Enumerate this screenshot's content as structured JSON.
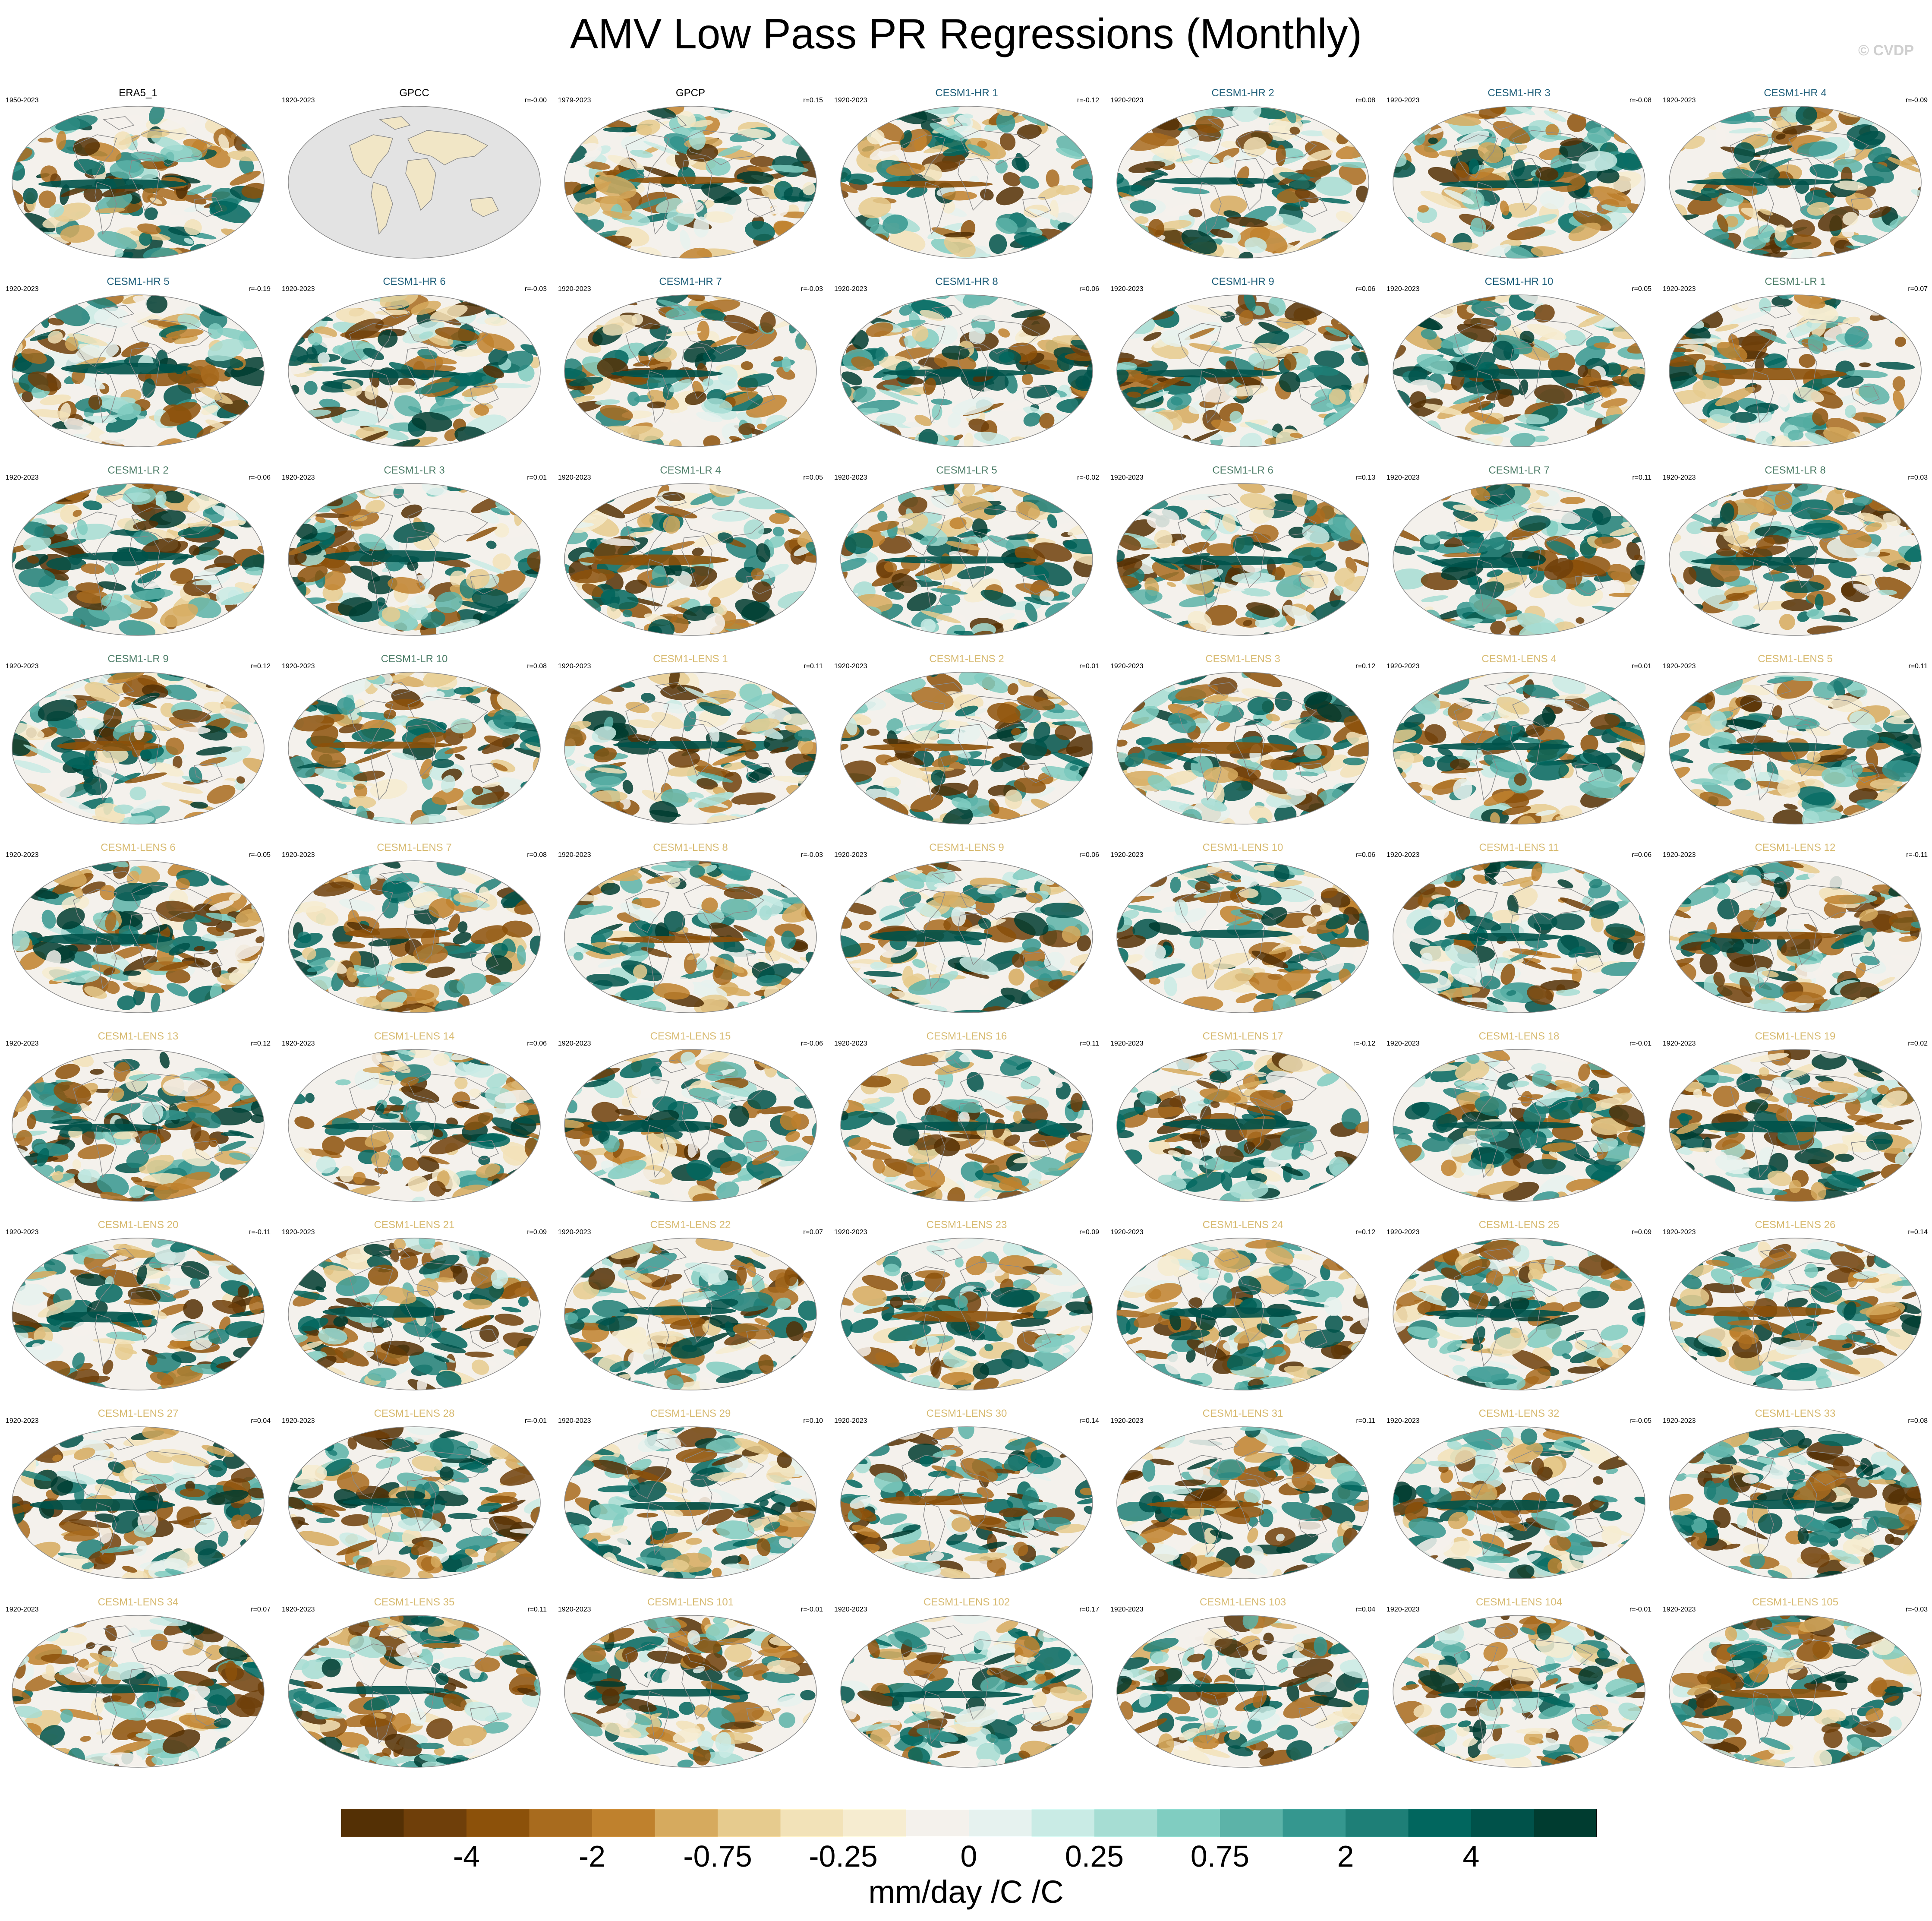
{
  "title": "AMV Low Pass PR Regressions (Monthly)",
  "watermark": "© CVDP",
  "colors": {
    "obs_title": "#000000",
    "hr_title": "#1f5f7a",
    "lr_title": "#4f7f6a",
    "lens_title": "#d8bb72",
    "land_missing": "#e3e3e3",
    "coast": "#8a8a8a"
  },
  "chart_data": {
    "type": "map_panel_grid",
    "colorbar": {
      "units": "mm/day /C /C",
      "tick_labels": [
        "-4",
        "-2",
        "-0.75",
        "-0.25",
        "0",
        "0.25",
        "0.75",
        "2",
        "4"
      ],
      "colors": [
        "#543005",
        "#6f3f0a",
        "#8c510a",
        "#a86b1e",
        "#bf812d",
        "#d6aa5e",
        "#e6cb8e",
        "#f2e2b8",
        "#f6ecd0",
        "#f4f1ec",
        "#e6f2ef",
        "#c9ebe5",
        "#a6ddd3",
        "#80cdc1",
        "#5cb3a8",
        "#35978f",
        "#1e7f77",
        "#01665e",
        "#00524a",
        "#003c30"
      ]
    },
    "panels": [
      {
        "title": "ERA5_1",
        "years": "1950-2023",
        "r": "",
        "group": "obs",
        "seed": 11
      },
      {
        "title": "GPCC",
        "years": "1920-2023",
        "r": "r=-0.00",
        "group": "obs",
        "seed": 0,
        "missing_ocean": true
      },
      {
        "title": "GPCP",
        "years": "1979-2023",
        "r": "r=0.15",
        "group": "obs",
        "seed": 23
      },
      {
        "title": "CESM1-HR 1",
        "years": "1920-2023",
        "r": "r=-0.12",
        "group": "hr",
        "seed": 31
      },
      {
        "title": "CESM1-HR 2",
        "years": "1920-2023",
        "r": "r=0.08",
        "group": "hr",
        "seed": 37
      },
      {
        "title": "CESM1-HR 3",
        "years": "1920-2023",
        "r": "r=-0.08",
        "group": "hr",
        "seed": 41
      },
      {
        "title": "CESM1-HR 4",
        "years": "1920-2023",
        "r": "r=-0.09",
        "group": "hr",
        "seed": 43
      },
      {
        "title": "CESM1-HR 5",
        "years": "1920-2023",
        "r": "r=-0.19",
        "group": "hr",
        "seed": 47
      },
      {
        "title": "CESM1-HR 6",
        "years": "1920-2023",
        "r": "r=-0.03",
        "group": "hr",
        "seed": 53
      },
      {
        "title": "CESM1-HR 7",
        "years": "1920-2023",
        "r": "r=-0.03",
        "group": "hr",
        "seed": 59
      },
      {
        "title": "CESM1-HR 8",
        "years": "1920-2023",
        "r": "r=0.06",
        "group": "hr",
        "seed": 61
      },
      {
        "title": "CESM1-HR 9",
        "years": "1920-2023",
        "r": "r=0.06",
        "group": "hr",
        "seed": 67
      },
      {
        "title": "CESM1-HR 10",
        "years": "1920-2023",
        "r": "r=0.05",
        "group": "hr",
        "seed": 71
      },
      {
        "title": "CESM1-LR 1",
        "years": "1920-2023",
        "r": "r=0.07",
        "group": "lr",
        "seed": 73
      },
      {
        "title": "CESM1-LR 2",
        "years": "1920-2023",
        "r": "r=-0.06",
        "group": "lr",
        "seed": 79
      },
      {
        "title": "CESM1-LR 3",
        "years": "1920-2023",
        "r": "r=0.01",
        "group": "lr",
        "seed": 83
      },
      {
        "title": "CESM1-LR 4",
        "years": "1920-2023",
        "r": "r=0.05",
        "group": "lr",
        "seed": 89
      },
      {
        "title": "CESM1-LR 5",
        "years": "1920-2023",
        "r": "r=-0.02",
        "group": "lr",
        "seed": 97
      },
      {
        "title": "CESM1-LR 6",
        "years": "1920-2023",
        "r": "r=0.13",
        "group": "lr",
        "seed": 101
      },
      {
        "title": "CESM1-LR 7",
        "years": "1920-2023",
        "r": "r=0.11",
        "group": "lr",
        "seed": 103
      },
      {
        "title": "CESM1-LR 8",
        "years": "1920-2023",
        "r": "r=0.03",
        "group": "lr",
        "seed": 107
      },
      {
        "title": "CESM1-LR 9",
        "years": "1920-2023",
        "r": "r=0.12",
        "group": "lr",
        "seed": 109
      },
      {
        "title": "CESM1-LR 10",
        "years": "1920-2023",
        "r": "r=0.08",
        "group": "lr",
        "seed": 113
      },
      {
        "title": "CESM1-LENS 1",
        "years": "1920-2023",
        "r": "r=0.11",
        "group": "lens",
        "seed": 127
      },
      {
        "title": "CESM1-LENS 2",
        "years": "1920-2023",
        "r": "r=0.01",
        "group": "lens",
        "seed": 131
      },
      {
        "title": "CESM1-LENS 3",
        "years": "1920-2023",
        "r": "r=0.12",
        "group": "lens",
        "seed": 137
      },
      {
        "title": "CESM1-LENS 4",
        "years": "1920-2023",
        "r": "r=0.01",
        "group": "lens",
        "seed": 139
      },
      {
        "title": "CESM1-LENS 5",
        "years": "1920-2023",
        "r": "r=0.11",
        "group": "lens",
        "seed": 149
      },
      {
        "title": "CESM1-LENS 6",
        "years": "1920-2023",
        "r": "r=-0.05",
        "group": "lens",
        "seed": 151
      },
      {
        "title": "CESM1-LENS 7",
        "years": "1920-2023",
        "r": "r=0.08",
        "group": "lens",
        "seed": 157
      },
      {
        "title": "CESM1-LENS 8",
        "years": "1920-2023",
        "r": "r=-0.03",
        "group": "lens",
        "seed": 163
      },
      {
        "title": "CESM1-LENS 9",
        "years": "1920-2023",
        "r": "r=0.06",
        "group": "lens",
        "seed": 167
      },
      {
        "title": "CESM1-LENS 10",
        "years": "1920-2023",
        "r": "r=0.06",
        "group": "lens",
        "seed": 173
      },
      {
        "title": "CESM1-LENS 11",
        "years": "1920-2023",
        "r": "r=0.06",
        "group": "lens",
        "seed": 179
      },
      {
        "title": "CESM1-LENS 12",
        "years": "1920-2023",
        "r": "r=-0.11",
        "group": "lens",
        "seed": 181
      },
      {
        "title": "CESM1-LENS 13",
        "years": "1920-2023",
        "r": "r=0.12",
        "group": "lens",
        "seed": 191
      },
      {
        "title": "CESM1-LENS 14",
        "years": "1920-2023",
        "r": "r=0.06",
        "group": "lens",
        "seed": 193
      },
      {
        "title": "CESM1-LENS 15",
        "years": "1920-2023",
        "r": "r=-0.06",
        "group": "lens",
        "seed": 197
      },
      {
        "title": "CESM1-LENS 16",
        "years": "1920-2023",
        "r": "r=0.11",
        "group": "lens",
        "seed": 199
      },
      {
        "title": "CESM1-LENS 17",
        "years": "1920-2023",
        "r": "r=-0.12",
        "group": "lens",
        "seed": 211
      },
      {
        "title": "CESM1-LENS 18",
        "years": "1920-2023",
        "r": "r=-0.01",
        "group": "lens",
        "seed": 223
      },
      {
        "title": "CESM1-LENS 19",
        "years": "1920-2023",
        "r": "r=0.02",
        "group": "lens",
        "seed": 227
      },
      {
        "title": "CESM1-LENS 20",
        "years": "1920-2023",
        "r": "r=-0.11",
        "group": "lens",
        "seed": 229
      },
      {
        "title": "CESM1-LENS 21",
        "years": "1920-2023",
        "r": "r=0.09",
        "group": "lens",
        "seed": 233
      },
      {
        "title": "CESM1-LENS 22",
        "years": "1920-2023",
        "r": "r=0.07",
        "group": "lens",
        "seed": 239
      },
      {
        "title": "CESM1-LENS 23",
        "years": "1920-2023",
        "r": "r=0.09",
        "group": "lens",
        "seed": 241
      },
      {
        "title": "CESM1-LENS 24",
        "years": "1920-2023",
        "r": "r=0.12",
        "group": "lens",
        "seed": 251
      },
      {
        "title": "CESM1-LENS 25",
        "years": "1920-2023",
        "r": "r=0.09",
        "group": "lens",
        "seed": 257
      },
      {
        "title": "CESM1-LENS 26",
        "years": "1920-2023",
        "r": "r=0.14",
        "group": "lens",
        "seed": 263
      },
      {
        "title": "CESM1-LENS 27",
        "years": "1920-2023",
        "r": "r=0.04",
        "group": "lens",
        "seed": 269
      },
      {
        "title": "CESM1-LENS 28",
        "years": "1920-2023",
        "r": "r=-0.01",
        "group": "lens",
        "seed": 271
      },
      {
        "title": "CESM1-LENS 29",
        "years": "1920-2023",
        "r": "r=0.10",
        "group": "lens",
        "seed": 277
      },
      {
        "title": "CESM1-LENS 30",
        "years": "1920-2023",
        "r": "r=0.14",
        "group": "lens",
        "seed": 281
      },
      {
        "title": "CESM1-LENS 31",
        "years": "1920-2023",
        "r": "r=0.11",
        "group": "lens",
        "seed": 283
      },
      {
        "title": "CESM1-LENS 32",
        "years": "1920-2023",
        "r": "r=-0.05",
        "group": "lens",
        "seed": 293
      },
      {
        "title": "CESM1-LENS 33",
        "years": "1920-2023",
        "r": "r=0.08",
        "group": "lens",
        "seed": 307
      },
      {
        "title": "CESM1-LENS 34",
        "years": "1920-2023",
        "r": "r=0.07",
        "group": "lens",
        "seed": 311
      },
      {
        "title": "CESM1-LENS 35",
        "years": "1920-2023",
        "r": "r=0.11",
        "group": "lens",
        "seed": 313
      },
      {
        "title": "CESM1-LENS 101",
        "years": "1920-2023",
        "r": "r=-0.01",
        "group": "lens",
        "seed": 317
      },
      {
        "title": "CESM1-LENS 102",
        "years": "1920-2023",
        "r": "r=0.17",
        "group": "lens",
        "seed": 331
      },
      {
        "title": "CESM1-LENS 103",
        "years": "1920-2023",
        "r": "r=0.04",
        "group": "lens",
        "seed": 337
      },
      {
        "title": "CESM1-LENS 104",
        "years": "1920-2023",
        "r": "r=-0.01",
        "group": "lens",
        "seed": 347
      },
      {
        "title": "CESM1-LENS 105",
        "years": "1920-2023",
        "r": "r=-0.03",
        "group": "lens",
        "seed": 349
      }
    ]
  }
}
